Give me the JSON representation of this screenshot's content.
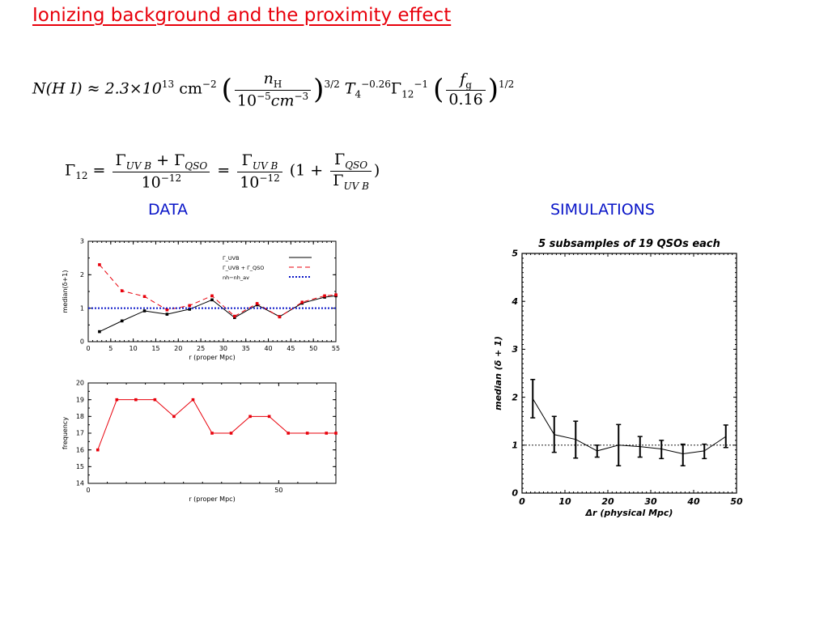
{
  "title": "Ionizing background and the proximity effect",
  "equation1": {
    "lhs": "N(H I) ≈ 2.3×10",
    "exp13": "13",
    "unit": "cm",
    "exp_m2": "−2",
    "frac1_num": "n",
    "frac1_num_sub": "H",
    "frac1_den": "10",
    "frac1_den_exp": "−5",
    "frac1_den_unit": "cm",
    "frac1_den_unit_exp": "−3",
    "pow1": "3/2",
    "T": "T",
    "T_sub": "4",
    "T_exp": "−0.26",
    "G": "Γ",
    "G_sub": "12",
    "G_exp": "−1",
    "frac2_num": "f",
    "frac2_num_sub": "g",
    "frac2_den": "0.16",
    "pow2": "1/2"
  },
  "equation2": {
    "lhs": "Γ",
    "lhs_sub": "12",
    "eq": "=",
    "num1": "Γ",
    "num1_sub": "UV B",
    "plus": " + Γ",
    "num1_sub2": "QSO",
    "den1": "10",
    "den1_exp": "−12",
    "num2": "Γ",
    "num2_sub": "UV B",
    "den2": "10",
    "den2_exp": "−12",
    "paren_open": "(1 +",
    "num3": "Γ",
    "num3_sub": "QSO",
    "den3": "Γ",
    "den3_sub": "UV B",
    "paren_close": ")"
  },
  "labels": {
    "data": "DATA",
    "simulations": "SIMULATIONS"
  },
  "colors": {
    "red": "#e8000b",
    "blue": "#0a16c8",
    "black": "#000000"
  },
  "chart_data": [
    {
      "type": "line",
      "xlabel": "r  (proper Mpc)",
      "ylabel": "median(δ+1)",
      "xlim": [
        0,
        55
      ],
      "ylim": [
        0,
        3
      ],
      "xticks": [
        0,
        5,
        10,
        15,
        20,
        25,
        30,
        35,
        40,
        45,
        50,
        55
      ],
      "yticks": [
        0,
        1,
        2,
        3
      ],
      "legend_position": "top-right",
      "series": [
        {
          "name": "Γ_UVB",
          "color": "#000000",
          "dash": "solid",
          "x": [
            2.5,
            7.5,
            12.5,
            17.5,
            22.5,
            27.5,
            32.5,
            37.5,
            42.5,
            47.5,
            52.5,
            55
          ],
          "y": [
            0.3,
            0.62,
            0.92,
            0.82,
            0.97,
            1.25,
            0.72,
            1.1,
            0.75,
            1.15,
            1.33,
            1.37
          ]
        },
        {
          "name": "Γ_UVB + Γ_QSO",
          "color": "#e8000b",
          "dash": "dashed",
          "x": [
            2.5,
            7.5,
            12.5,
            17.5,
            22.5,
            27.5,
            32.5,
            37.5,
            42.5,
            47.5,
            52.5,
            55
          ],
          "y": [
            2.3,
            1.52,
            1.35,
            0.95,
            1.08,
            1.37,
            0.76,
            1.14,
            0.74,
            1.18,
            1.37,
            1.4
          ]
        },
        {
          "name": "nh−nh_av",
          "color": "#0a16c8",
          "dash": "dotted",
          "x": [
            0,
            55
          ],
          "y": [
            1,
            1
          ]
        }
      ]
    },
    {
      "type": "line",
      "xlabel": "r  (proper Mpc)",
      "ylabel": "frequency",
      "xlim": [
        0,
        65
      ],
      "ylim": [
        14,
        20
      ],
      "xticks": [
        0,
        50
      ],
      "yticks": [
        14,
        15,
        16,
        17,
        18,
        19,
        20
      ],
      "series": [
        {
          "color": "#e8000b",
          "x": [
            2.5,
            7.5,
            12.5,
            17.5,
            22.5,
            27.5,
            32.5,
            37.5,
            42.5,
            47.5,
            52.5,
            57.5,
            62.5,
            65
          ],
          "y": [
            16,
            19,
            19,
            19,
            18,
            19,
            17,
            17,
            18,
            18,
            17,
            17,
            17,
            17
          ]
        }
      ]
    },
    {
      "type": "line",
      "title": "5 subsamples of 19 QSOs each",
      "xlabel": "Δr (physical Mpc)",
      "ylabel": "median (δ + 1)",
      "xlim": [
        0,
        50
      ],
      "ylim": [
        0,
        5
      ],
      "xticks": [
        0,
        10,
        20,
        30,
        40,
        50
      ],
      "yticks": [
        0,
        1,
        2,
        3,
        4,
        5
      ],
      "reference_line": 1,
      "series": [
        {
          "color": "#000000",
          "x": [
            2.5,
            7.5,
            12.5,
            17.5,
            22.5,
            27.5,
            32.5,
            37.5,
            42.5,
            47.5
          ],
          "y": [
            1.97,
            1.22,
            1.12,
            0.88,
            1.0,
            0.97,
            0.92,
            0.82,
            0.88,
            1.18
          ],
          "err_low": [
            1.57,
            0.85,
            0.73,
            0.75,
            0.57,
            0.75,
            0.72,
            0.57,
            0.72,
            0.95
          ],
          "err_high": [
            2.37,
            1.6,
            1.5,
            1.0,
            1.43,
            1.18,
            1.1,
            1.02,
            1.02,
            1.42
          ]
        }
      ]
    }
  ]
}
